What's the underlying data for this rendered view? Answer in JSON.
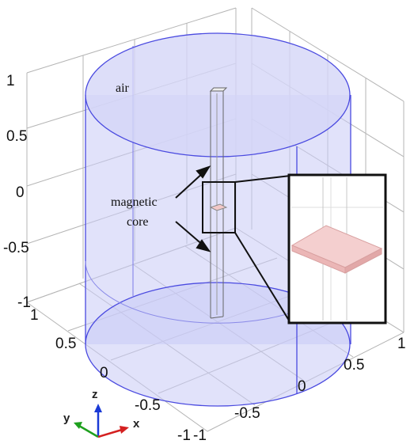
{
  "scene": {
    "labels": {
      "air": "air",
      "magnetic_core_line1": "magnetic",
      "magnetic_core_line2": "core"
    },
    "z_ticks": [
      "1",
      "0.5",
      "0",
      "-0.5",
      "-1"
    ],
    "x_ticks_left": [
      "1",
      "0.5",
      "0",
      "-0.5",
      "-1"
    ],
    "y_ticks_right": [
      "-1",
      "-0.5",
      "0",
      "0.5",
      "1"
    ],
    "axis_triad": {
      "z": "z",
      "y": "y",
      "x": "x",
      "z_color": "#1a3ad6",
      "y_color": "#1ea01e",
      "x_color": "#d42020"
    },
    "colors": {
      "air_fill": "#c8caf5",
      "air_edge": "#4a4ae0",
      "core_fill": "#f2c8c8",
      "grid": "#b0b0b0"
    }
  }
}
